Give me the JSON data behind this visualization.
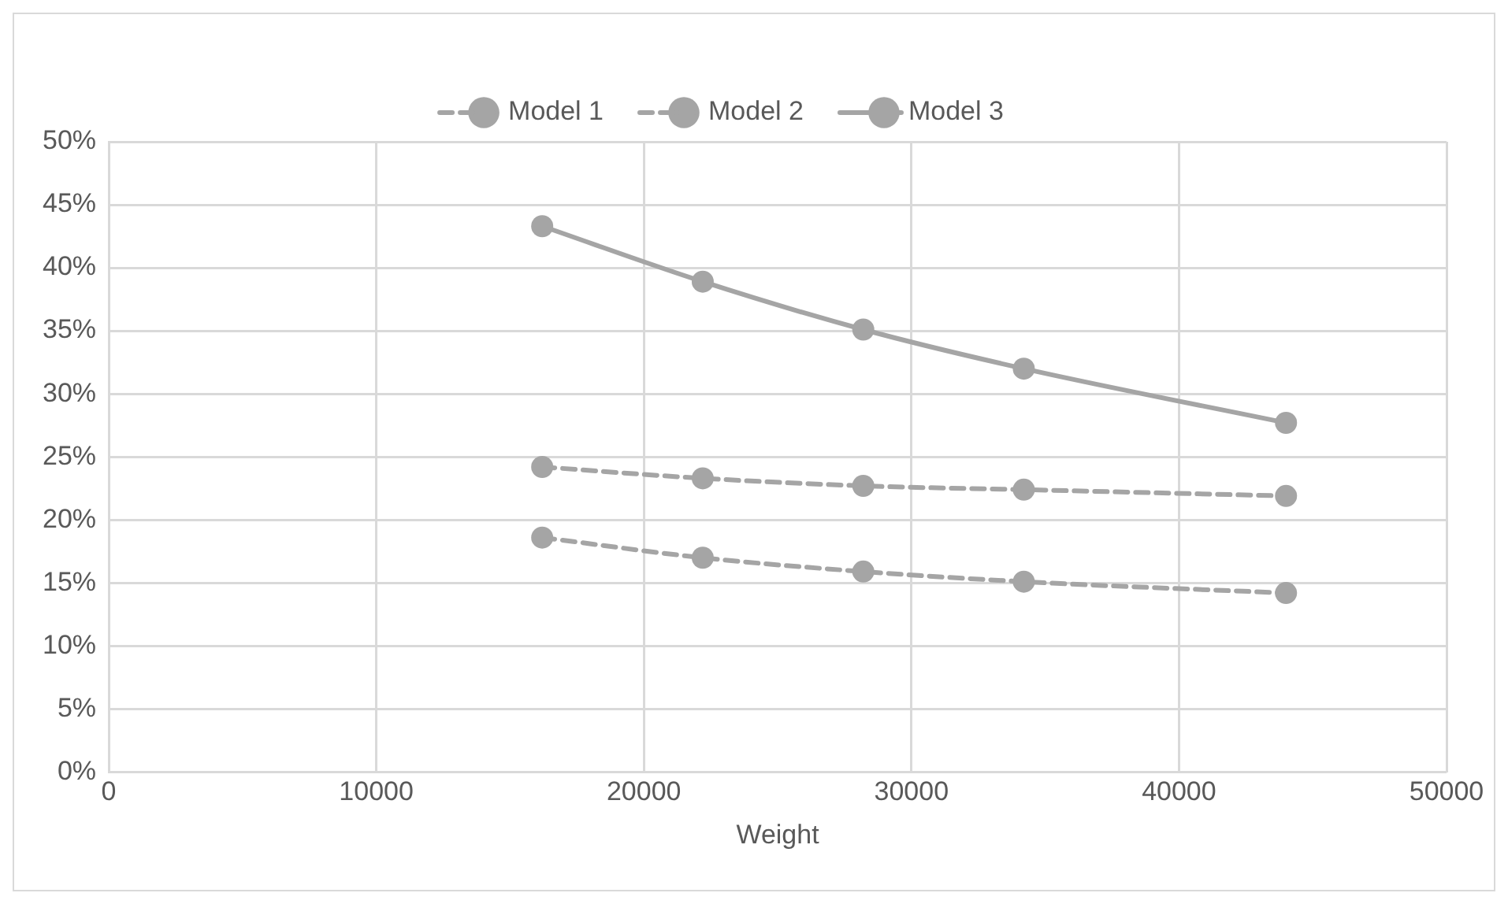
{
  "chart_data": {
    "type": "line",
    "xlabel": "Weight",
    "x": [
      16200,
      22200,
      28200,
      34200,
      44000
    ],
    "series": [
      {
        "name": "Model 1",
        "color": "#a5a5a5",
        "line_style": "dashed",
        "values": [
          18.6,
          17.0,
          15.9,
          15.1,
          14.2
        ]
      },
      {
        "name": "Model 2",
        "color": "#a5a5a5",
        "line_style": "dashed",
        "values": [
          24.2,
          23.3,
          22.7,
          22.4,
          21.9
        ]
      },
      {
        "name": "Model 3",
        "color": "#a5a5a5",
        "line_style": "solid",
        "values": [
          43.3,
          38.9,
          35.1,
          32.0,
          27.7
        ]
      }
    ],
    "xlim": [
      0,
      50000
    ],
    "xticks": [
      0,
      10000,
      20000,
      30000,
      40000,
      50000
    ],
    "ylim": [
      0,
      50
    ],
    "yticks": [
      {
        "value": 0,
        "label": "0%"
      },
      {
        "value": 5,
        "label": "5%"
      },
      {
        "value": 10,
        "label": "10%"
      },
      {
        "value": 15,
        "label": "15%"
      },
      {
        "value": 20,
        "label": "20%"
      },
      {
        "value": 25,
        "label": "25%"
      },
      {
        "value": 30,
        "label": "30%"
      },
      {
        "value": 35,
        "label": "35%"
      },
      {
        "value": 40,
        "label": "40%"
      },
      {
        "value": 45,
        "label": "45%"
      },
      {
        "value": 50,
        "label": "50%"
      }
    ],
    "grid": true,
    "legend": "top",
    "marker": "circle"
  }
}
